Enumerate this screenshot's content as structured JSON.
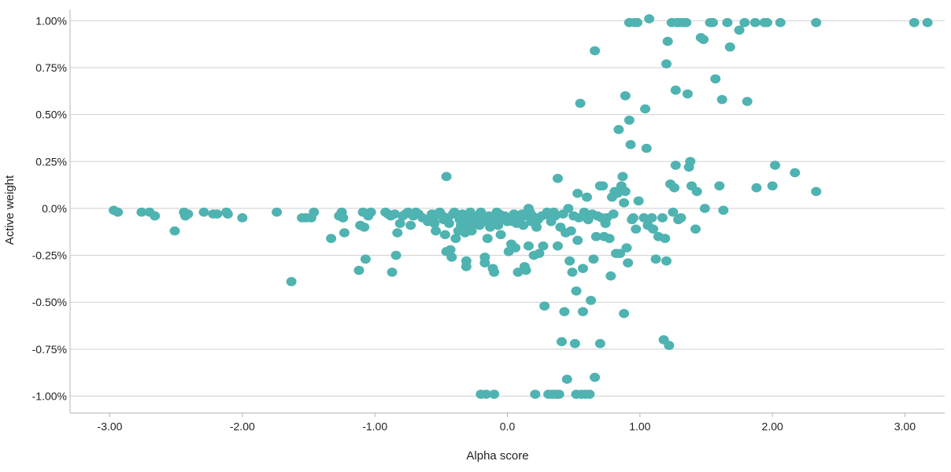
{
  "chart_data": {
    "type": "scatter",
    "title": "",
    "xlabel": "Alpha score",
    "ylabel": "Active weight",
    "xlim": [
      -3.3,
      3.3
    ],
    "ylim": [
      -1.09,
      1.06
    ],
    "x_ticks": [
      -3,
      -2,
      -1,
      0,
      1,
      2,
      3
    ],
    "x_tick_labels": [
      "-3.00",
      "-2.00",
      "-1.00",
      "0.0",
      "1.00",
      "2.00",
      "3.00"
    ],
    "y_ticks": [
      1.0,
      0.75,
      0.5,
      0.25,
      0.0,
      -0.25,
      -0.5,
      -0.75,
      -1.0
    ],
    "y_tick_labels": [
      "1.00%",
      "0.75%",
      "0.50%",
      "0.25%",
      "0.0%",
      "-0.25%",
      "-0.50%",
      "-0.75%",
      "-1.00%"
    ],
    "grid": "horizontal",
    "color": "#4fb3b1",
    "series": [
      {
        "points": [
          [
            -2.97,
            -0.01
          ],
          [
            -2.94,
            -0.02
          ],
          [
            -2.76,
            -0.02
          ],
          [
            -2.7,
            -0.02
          ],
          [
            -2.66,
            -0.04
          ],
          [
            -2.51,
            -0.12
          ],
          [
            -2.44,
            -0.02
          ],
          [
            -2.43,
            -0.04
          ],
          [
            -2.41,
            -0.03
          ],
          [
            -2.29,
            -0.02
          ],
          [
            -2.22,
            -0.03
          ],
          [
            -2.19,
            -0.03
          ],
          [
            -2.12,
            -0.02
          ],
          [
            -2.11,
            -0.03
          ],
          [
            -2.0,
            -0.05
          ],
          [
            -1.74,
            -0.02
          ],
          [
            -1.63,
            -0.39
          ],
          [
            -1.55,
            -0.05
          ],
          [
            -1.52,
            -0.05
          ],
          [
            -1.48,
            -0.05
          ],
          [
            -1.46,
            -0.02
          ],
          [
            -1.33,
            -0.16
          ],
          [
            -1.27,
            -0.04
          ],
          [
            -1.25,
            -0.02
          ],
          [
            -1.24,
            -0.05
          ],
          [
            -1.23,
            -0.13
          ],
          [
            -1.12,
            -0.33
          ],
          [
            -1.11,
            -0.09
          ],
          [
            -1.09,
            -0.02
          ],
          [
            -1.08,
            -0.1
          ],
          [
            -1.07,
            -0.27
          ],
          [
            -1.05,
            -0.04
          ],
          [
            -1.03,
            -0.02
          ],
          [
            -0.92,
            -0.02
          ],
          [
            -0.9,
            -0.03
          ],
          [
            -0.88,
            -0.04
          ],
          [
            -0.87,
            -0.34
          ],
          [
            -0.85,
            -0.03
          ],
          [
            -0.84,
            -0.25
          ],
          [
            -0.83,
            -0.13
          ],
          [
            -0.81,
            -0.08
          ],
          [
            -0.79,
            -0.04
          ],
          [
            -0.77,
            -0.03
          ],
          [
            -0.75,
            -0.02
          ],
          [
            -0.73,
            -0.09
          ],
          [
            -0.71,
            -0.04
          ],
          [
            -0.69,
            -0.02
          ],
          [
            -0.67,
            -0.03
          ],
          [
            -0.64,
            -0.05
          ],
          [
            -0.6,
            -0.07
          ],
          [
            -0.57,
            -0.03
          ],
          [
            -0.56,
            -0.06
          ],
          [
            -0.55,
            -0.08
          ],
          [
            -0.54,
            -0.12
          ],
          [
            -0.53,
            -0.03
          ],
          [
            -0.51,
            -0.02
          ],
          [
            -0.49,
            -0.04
          ],
          [
            -0.48,
            -0.06
          ],
          [
            -0.47,
            -0.14
          ],
          [
            -0.46,
            0.17
          ],
          [
            -0.46,
            -0.23
          ],
          [
            -0.45,
            -0.05
          ],
          [
            -0.44,
            -0.08
          ],
          [
            -0.43,
            -0.22
          ],
          [
            -0.42,
            -0.26
          ],
          [
            -0.41,
            -0.03
          ],
          [
            -0.4,
            -0.02
          ],
          [
            -0.39,
            -0.16
          ],
          [
            -0.37,
            -0.12
          ],
          [
            -0.36,
            -0.06
          ],
          [
            -0.35,
            -0.09
          ],
          [
            -0.34,
            -0.03
          ],
          [
            -0.33,
            -0.04
          ],
          [
            -0.32,
            -0.13
          ],
          [
            -0.31,
            -0.28
          ],
          [
            -0.31,
            -0.31
          ],
          [
            -0.3,
            -0.07
          ],
          [
            -0.29,
            -0.1
          ],
          [
            -0.28,
            -0.02
          ],
          [
            -0.27,
            -0.12
          ],
          [
            -0.26,
            -0.05
          ],
          [
            -0.25,
            -0.08
          ],
          [
            -0.23,
            -0.04
          ],
          [
            -0.22,
            -0.06
          ],
          [
            -0.21,
            -0.09
          ],
          [
            -0.2,
            -0.02
          ],
          [
            -0.2,
            -0.99
          ],
          [
            -0.19,
            -0.04
          ],
          [
            -0.18,
            -0.07
          ],
          [
            -0.17,
            -0.26
          ],
          [
            -0.17,
            -0.29
          ],
          [
            -0.16,
            -0.99
          ],
          [
            -0.15,
            -0.16
          ],
          [
            -0.14,
            -0.04
          ],
          [
            -0.13,
            -0.1
          ],
          [
            -0.12,
            -0.07
          ],
          [
            -0.11,
            -0.32
          ],
          [
            -0.1,
            -0.34
          ],
          [
            -0.1,
            -0.99
          ],
          [
            -0.09,
            -0.05
          ],
          [
            -0.08,
            -0.02
          ],
          [
            -0.07,
            -0.09
          ],
          [
            -0.06,
            -0.03
          ],
          [
            -0.05,
            -0.14
          ],
          [
            -0.04,
            -0.06
          ],
          [
            -0.03,
            -0.05
          ],
          [
            -0.02,
            -0.04
          ],
          [
            0.0,
            -0.07
          ],
          [
            0.01,
            -0.23
          ],
          [
            0.02,
            -0.05
          ],
          [
            0.03,
            -0.19
          ],
          [
            0.04,
            -0.07
          ],
          [
            0.05,
            -0.03
          ],
          [
            0.06,
            -0.21
          ],
          [
            0.07,
            -0.08
          ],
          [
            0.08,
            -0.34
          ],
          [
            0.1,
            -0.05
          ],
          [
            0.11,
            -0.03
          ],
          [
            0.12,
            -0.09
          ],
          [
            0.13,
            -0.31
          ],
          [
            0.14,
            -0.33
          ],
          [
            0.15,
            -0.04
          ],
          [
            0.16,
            0.0
          ],
          [
            0.16,
            -0.2
          ],
          [
            0.17,
            -0.02
          ],
          [
            0.18,
            -0.07
          ],
          [
            0.19,
            -0.04
          ],
          [
            0.2,
            -0.25
          ],
          [
            0.21,
            -0.99
          ],
          [
            0.22,
            -0.1
          ],
          [
            0.23,
            -0.06
          ],
          [
            0.24,
            -0.24
          ],
          [
            0.26,
            -0.04
          ],
          [
            0.27,
            -0.2
          ],
          [
            0.28,
            -0.52
          ],
          [
            0.3,
            -0.02
          ],
          [
            0.31,
            -0.99
          ],
          [
            0.32,
            -0.04
          ],
          [
            0.33,
            -0.07
          ],
          [
            0.34,
            -0.99
          ],
          [
            0.35,
            -0.02
          ],
          [
            0.36,
            -0.04
          ],
          [
            0.37,
            -0.99
          ],
          [
            0.38,
            0.16
          ],
          [
            0.38,
            -0.2
          ],
          [
            0.39,
            -0.99
          ],
          [
            0.4,
            -0.1
          ],
          [
            0.41,
            -0.71
          ],
          [
            0.42,
            -0.03
          ],
          [
            0.43,
            -0.55
          ],
          [
            0.44,
            -0.13
          ],
          [
            0.45,
            -0.91
          ],
          [
            0.46,
            0.0
          ],
          [
            0.47,
            -0.28
          ],
          [
            0.48,
            -0.12
          ],
          [
            0.49,
            -0.34
          ],
          [
            0.5,
            -0.04
          ],
          [
            0.51,
            -0.72
          ],
          [
            0.52,
            -0.44
          ],
          [
            0.52,
            -0.99
          ],
          [
            0.53,
            0.08
          ],
          [
            0.53,
            -0.17
          ],
          [
            0.54,
            -0.05
          ],
          [
            0.55,
            0.56
          ],
          [
            0.56,
            -0.99
          ],
          [
            0.57,
            -0.55
          ],
          [
            0.57,
            -0.32
          ],
          [
            0.58,
            -0.02
          ],
          [
            0.59,
            -0.99
          ],
          [
            0.6,
            0.06
          ],
          [
            0.61,
            -0.06
          ],
          [
            0.62,
            -0.99
          ],
          [
            0.63,
            -0.49
          ],
          [
            0.64,
            -0.03
          ],
          [
            0.65,
            -0.27
          ],
          [
            0.66,
            0.84
          ],
          [
            0.66,
            -0.9
          ],
          [
            0.67,
            -0.15
          ],
          [
            0.68,
            -0.04
          ],
          [
            0.7,
            0.12
          ],
          [
            0.7,
            -0.72
          ],
          [
            0.71,
            -0.05
          ],
          [
            0.72,
            0.12
          ],
          [
            0.73,
            -0.15
          ],
          [
            0.74,
            -0.08
          ],
          [
            0.75,
            -0.05
          ],
          [
            0.77,
            -0.16
          ],
          [
            0.78,
            -0.36
          ],
          [
            0.79,
            0.06
          ],
          [
            0.8,
            -0.03
          ],
          [
            0.81,
            0.09
          ],
          [
            0.82,
            -0.24
          ],
          [
            0.83,
            0.08
          ],
          [
            0.84,
            0.42
          ],
          [
            0.85,
            -0.24
          ],
          [
            0.86,
            0.12
          ],
          [
            0.87,
            0.17
          ],
          [
            0.88,
            -0.56
          ],
          [
            0.88,
            0.03
          ],
          [
            0.89,
            0.09
          ],
          [
            0.89,
            0.6
          ],
          [
            0.9,
            -0.21
          ],
          [
            0.91,
            -0.29
          ],
          [
            0.92,
            0.99
          ],
          [
            0.92,
            0.47
          ],
          [
            0.93,
            0.34
          ],
          [
            0.94,
            -0.06
          ],
          [
            0.95,
            -0.05
          ],
          [
            0.96,
            0.99
          ],
          [
            0.97,
            -0.11
          ],
          [
            0.98,
            0.99
          ],
          [
            0.99,
            0.04
          ],
          [
            1.03,
            -0.05
          ],
          [
            1.04,
            0.53
          ],
          [
            1.05,
            0.32
          ],
          [
            1.06,
            -0.09
          ],
          [
            1.07,
            1.01
          ],
          [
            1.09,
            -0.05
          ],
          [
            1.1,
            -0.11
          ],
          [
            1.12,
            -0.27
          ],
          [
            1.14,
            -0.15
          ],
          [
            1.17,
            -0.05
          ],
          [
            1.18,
            -0.7
          ],
          [
            1.19,
            -0.16
          ],
          [
            1.2,
            0.77
          ],
          [
            1.2,
            -0.28
          ],
          [
            1.21,
            0.89
          ],
          [
            1.22,
            -0.73
          ],
          [
            1.23,
            0.13
          ],
          [
            1.24,
            0.99
          ],
          [
            1.25,
            -0.02
          ],
          [
            1.26,
            0.11
          ],
          [
            1.27,
            0.23
          ],
          [
            1.27,
            0.63
          ],
          [
            1.28,
            0.99
          ],
          [
            1.29,
            -0.06
          ],
          [
            1.3,
            0.99
          ],
          [
            1.31,
            -0.05
          ],
          [
            1.33,
            0.99
          ],
          [
            1.35,
            0.99
          ],
          [
            1.36,
            0.61
          ],
          [
            1.37,
            0.22
          ],
          [
            1.38,
            0.25
          ],
          [
            1.39,
            0.12
          ],
          [
            1.42,
            -0.11
          ],
          [
            1.43,
            0.09
          ],
          [
            1.46,
            0.91
          ],
          [
            1.48,
            0.9
          ],
          [
            1.49,
            0.0
          ],
          [
            1.53,
            0.99
          ],
          [
            1.55,
            0.99
          ],
          [
            1.57,
            0.69
          ],
          [
            1.6,
            0.12
          ],
          [
            1.62,
            0.58
          ],
          [
            1.63,
            -0.01
          ],
          [
            1.66,
            0.99
          ],
          [
            1.68,
            0.86
          ],
          [
            1.75,
            0.95
          ],
          [
            1.79,
            0.99
          ],
          [
            1.81,
            0.57
          ],
          [
            1.87,
            0.99
          ],
          [
            1.88,
            0.11
          ],
          [
            1.94,
            0.99
          ],
          [
            1.96,
            0.99
          ],
          [
            2.0,
            0.12
          ],
          [
            2.02,
            0.23
          ],
          [
            2.06,
            0.99
          ],
          [
            2.17,
            0.19
          ],
          [
            2.33,
            0.99
          ],
          [
            2.33,
            0.09
          ],
          [
            3.07,
            0.99
          ],
          [
            3.17,
            0.99
          ]
        ]
      }
    ]
  }
}
